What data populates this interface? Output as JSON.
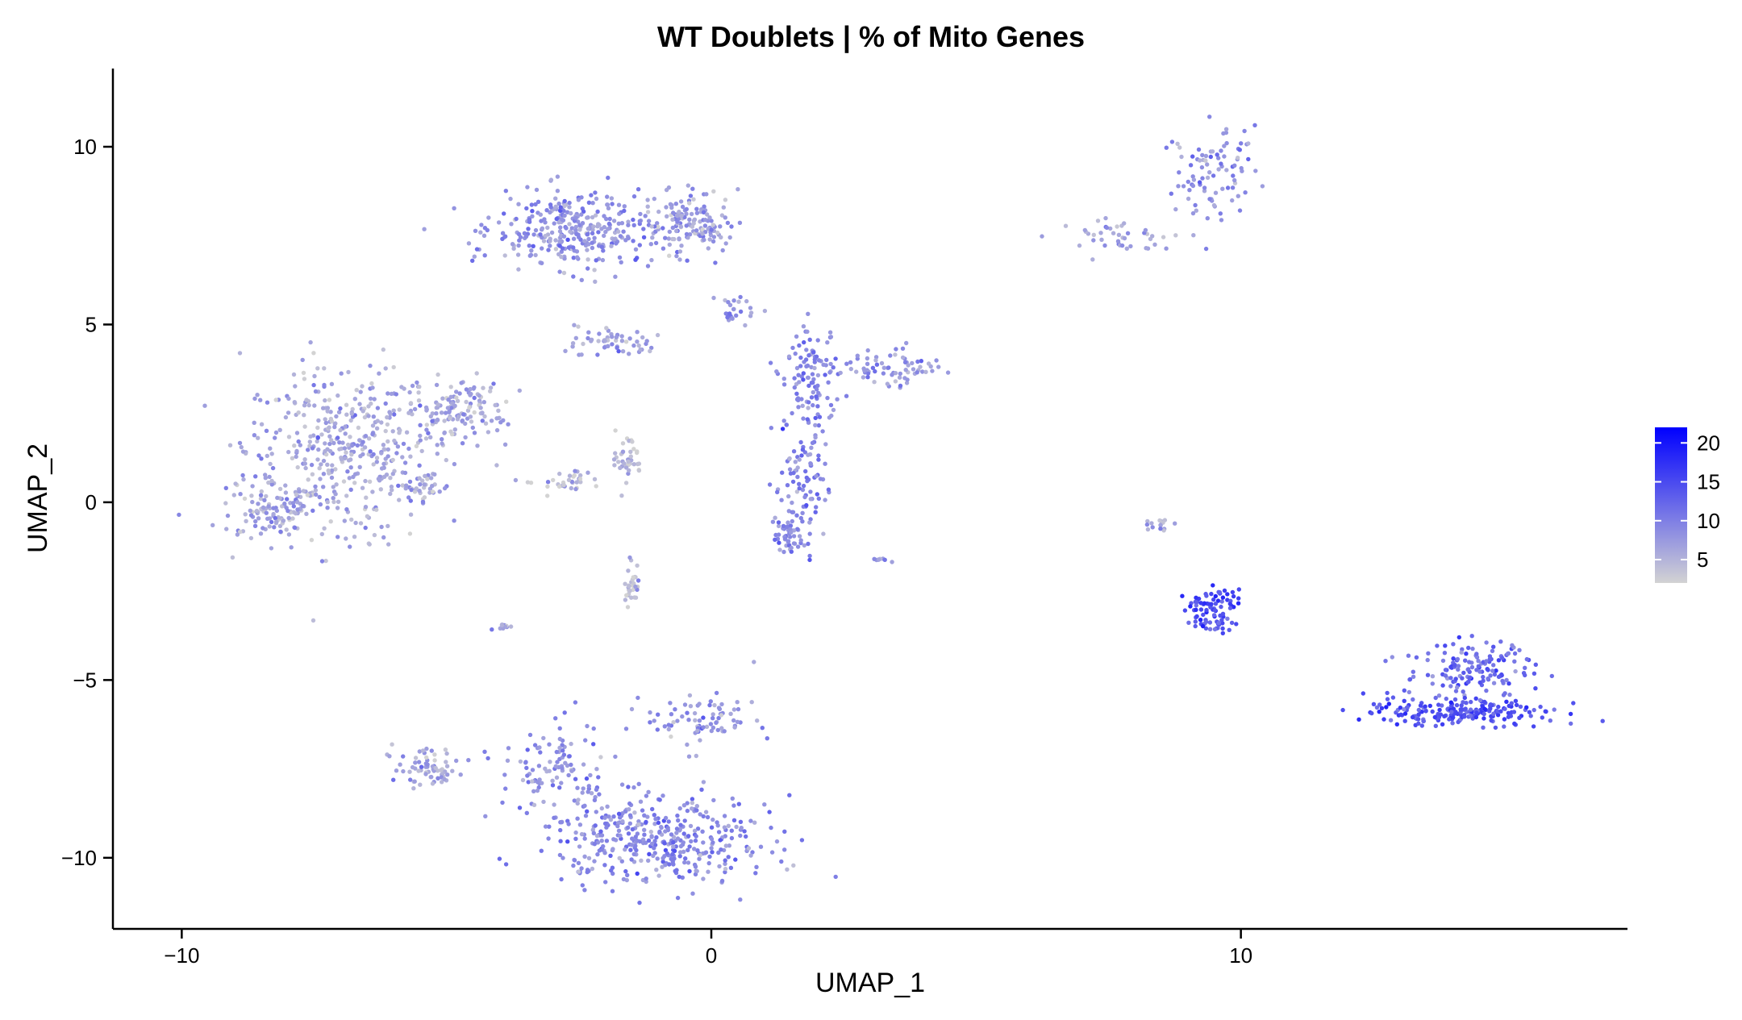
{
  "chart_data": {
    "type": "scatter",
    "title": "WT Doublets | % of Mito Genes",
    "xlabel": "UMAP_1",
    "ylabel": "UMAP_2",
    "xlim": [
      -11.3,
      17.3
    ],
    "ylim": [
      -12.0,
      12.2
    ],
    "x_ticks": [
      -10,
      0,
      10
    ],
    "x_tick_labels": [
      "−10",
      "0",
      "10"
    ],
    "y_ticks": [
      -10,
      -5,
      0,
      5,
      10
    ],
    "y_tick_labels": [
      "−10",
      "−5",
      "0",
      "5",
      "10"
    ],
    "grid": false,
    "legend": {
      "type": "colorbar",
      "placement": "right",
      "range": [
        2,
        22
      ],
      "ticks": [
        5,
        10,
        15,
        20
      ],
      "tick_labels": [
        "5",
        "10",
        "15",
        "20"
      ],
      "colors": {
        "low": "#d3d3d3",
        "high": "#0000ff"
      }
    },
    "point_color_scale": "value (% of mito genes) mapped from #d3d3d3 (low) to #0000ff (high)",
    "clusters": [
      {
        "center": [
          -7.0,
          1.5
        ],
        "spread": [
          1.2,
          1.6
        ],
        "n": 420,
        "value": 6
      },
      {
        "center": [
          -8.3,
          -0.2
        ],
        "spread": [
          0.6,
          0.5
        ],
        "n": 110,
        "value": 6
      },
      {
        "center": [
          -4.8,
          2.6
        ],
        "spread": [
          0.6,
          0.6
        ],
        "n": 140,
        "value": 6
      },
      {
        "center": [
          -5.4,
          0.4
        ],
        "spread": [
          0.3,
          0.3
        ],
        "n": 35,
        "value": 6
      },
      {
        "center": [
          -2.6,
          7.6
        ],
        "spread": [
          1.0,
          0.7
        ],
        "n": 320,
        "value": 8
      },
      {
        "center": [
          -0.4,
          7.9
        ],
        "spread": [
          0.6,
          0.6
        ],
        "n": 140,
        "value": 7
      },
      {
        "center": [
          -1.8,
          4.5
        ],
        "spread": [
          0.5,
          0.3
        ],
        "n": 55,
        "value": 7
      },
      {
        "center": [
          -1.5,
          -2.3
        ],
        "spread": [
          0.1,
          0.4
        ],
        "n": 30,
        "value": 4
      },
      {
        "center": [
          -1.6,
          1.2
        ],
        "spread": [
          0.2,
          0.5
        ],
        "n": 40,
        "value": 4
      },
      {
        "center": [
          -2.8,
          0.6
        ],
        "spread": [
          0.5,
          0.2
        ],
        "n": 35,
        "value": 4
      },
      {
        "center": [
          0.5,
          5.4
        ],
        "spread": [
          0.25,
          0.3
        ],
        "n": 25,
        "value": 8
      },
      {
        "center": [
          1.9,
          3.4
        ],
        "spread": [
          0.35,
          0.9
        ],
        "n": 110,
        "value": 9
      },
      {
        "center": [
          1.7,
          0.6
        ],
        "spread": [
          0.35,
          1.2
        ],
        "n": 90,
        "value": 9
      },
      {
        "center": [
          1.5,
          -1.0
        ],
        "spread": [
          0.2,
          0.4
        ],
        "n": 50,
        "value": 9
      },
      {
        "center": [
          3.5,
          3.8
        ],
        "spread": [
          0.6,
          0.35
        ],
        "n": 70,
        "value": 8
      },
      {
        "center": [
          -1.0,
          -9.5
        ],
        "spread": [
          1.4,
          0.8
        ],
        "n": 400,
        "value": 9
      },
      {
        "center": [
          -3.0,
          -7.5
        ],
        "spread": [
          0.7,
          0.9
        ],
        "n": 110,
        "value": 8
      },
      {
        "center": [
          -0.2,
          -6.1
        ],
        "spread": [
          0.7,
          0.5
        ],
        "n": 80,
        "value": 8
      },
      {
        "center": [
          -5.4,
          -7.5
        ],
        "spread": [
          0.4,
          0.4
        ],
        "n": 70,
        "value": 6
      },
      {
        "center": [
          9.5,
          9.3
        ],
        "spread": [
          0.5,
          0.8
        ],
        "n": 90,
        "value": 8
      },
      {
        "center": [
          7.8,
          7.5
        ],
        "spread": [
          0.9,
          0.35
        ],
        "n": 45,
        "value": 7
      },
      {
        "center": [
          9.5,
          -2.8
        ],
        "spread": [
          0.35,
          0.25
        ],
        "n": 60,
        "value": 15
      },
      {
        "center": [
          9.5,
          -3.4
        ],
        "spread": [
          0.3,
          0.15
        ],
        "n": 30,
        "value": 14
      },
      {
        "center": [
          14.1,
          -5.9
        ],
        "spread": [
          1.2,
          0.25
        ],
        "n": 200,
        "value": 14
      },
      {
        "center": [
          14.3,
          -4.7
        ],
        "spread": [
          0.8,
          0.6
        ],
        "n": 150,
        "value": 12
      },
      {
        "center": [
          8.5,
          -0.6
        ],
        "spread": [
          0.2,
          0.1
        ],
        "n": 15,
        "value": 6
      },
      {
        "center": [
          -3.9,
          -3.5
        ],
        "spread": [
          0.2,
          0.05
        ],
        "n": 12,
        "value": 6
      },
      {
        "center": [
          3.2,
          -1.6
        ],
        "spread": [
          0.1,
          0.05
        ],
        "n": 8,
        "value": 7
      }
    ]
  }
}
